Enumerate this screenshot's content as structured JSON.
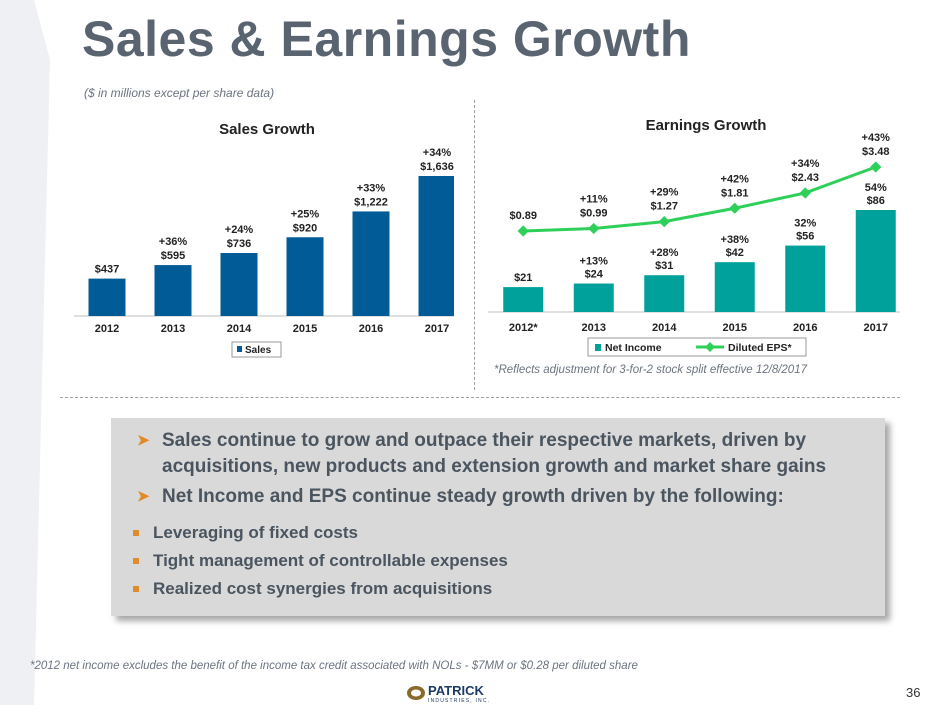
{
  "title": "Sales & Earnings Growth",
  "subnote": "($ in millions except per share data)",
  "chart_data": [
    {
      "type": "bar",
      "title": "Sales Growth",
      "categories": [
        "2012",
        "2013",
        "2014",
        "2015",
        "2016",
        "2017"
      ],
      "series": [
        {
          "name": "Sales",
          "values": [
            437,
            595,
            736,
            920,
            1222,
            1636
          ],
          "color": "#005b96"
        }
      ],
      "value_labels": [
        "$437",
        "$595",
        "$736",
        "$920",
        "$1,222",
        "$1,636"
      ],
      "growth_labels": [
        "",
        "+36%",
        "+24%",
        "+25%",
        "+33%",
        "+34%"
      ],
      "ylim": [
        0,
        1800
      ],
      "legend": "bottom"
    },
    {
      "type": "bar+line",
      "title": "Earnings Growth",
      "categories": [
        "2012*",
        "2013",
        "2014",
        "2015",
        "2016",
        "2017"
      ],
      "series": [
        {
          "name": "Net Income",
          "type": "bar",
          "values": [
            21,
            24,
            31,
            42,
            56,
            86
          ],
          "color": "#00a19b",
          "value_labels": [
            "$21",
            "$24",
            "$31",
            "$42",
            "$56",
            "$86"
          ],
          "growth_labels": [
            "",
            "+13%",
            "+28%",
            "+38%",
            "32%",
            "54%"
          ]
        },
        {
          "name": "Diluted EPS*",
          "type": "line",
          "values": [
            0.89,
            0.99,
            1.27,
            1.81,
            2.43,
            3.48
          ],
          "color": "#2fd05a",
          "value_labels": [
            "$0.89",
            "$0.99",
            "$1.27",
            "$1.81",
            "$2.43",
            "$3.48"
          ],
          "growth_labels": [
            "",
            "+11%",
            "+29%",
            "+42%",
            "+34%",
            "+43%"
          ]
        }
      ],
      "legend": "bottom"
    }
  ],
  "earnings_footnote": "*Reflects adjustment for 3-for-2 stock split effective 12/8/2017",
  "bullets": [
    {
      "text": "Sales continue to grow and outpace their respective markets, driven by acquisitions, new products and extension growth and market share gains"
    },
    {
      "text": "Net Income and EPS continue steady growth driven by the following:"
    }
  ],
  "sub_bullets": [
    {
      "text": "Leveraging of fixed costs"
    },
    {
      "text": "Tight management of controllable expenses"
    },
    {
      "text": "Realized cost synergies from acquisitions"
    }
  ],
  "bottom_note": "*2012 net income excludes the benefit of the income tax credit associated with NOLs - $7MM or $0.28 per diluted share",
  "logo": {
    "name": "PATRICK",
    "sub": "INDUSTRIES, INC."
  },
  "page_number": "36",
  "colors": {
    "accent": "#e08a2b",
    "title": "#5a6470",
    "sales_bar": "#005b96",
    "ni_bar": "#00a19b",
    "eps_line": "#2fd05a"
  }
}
